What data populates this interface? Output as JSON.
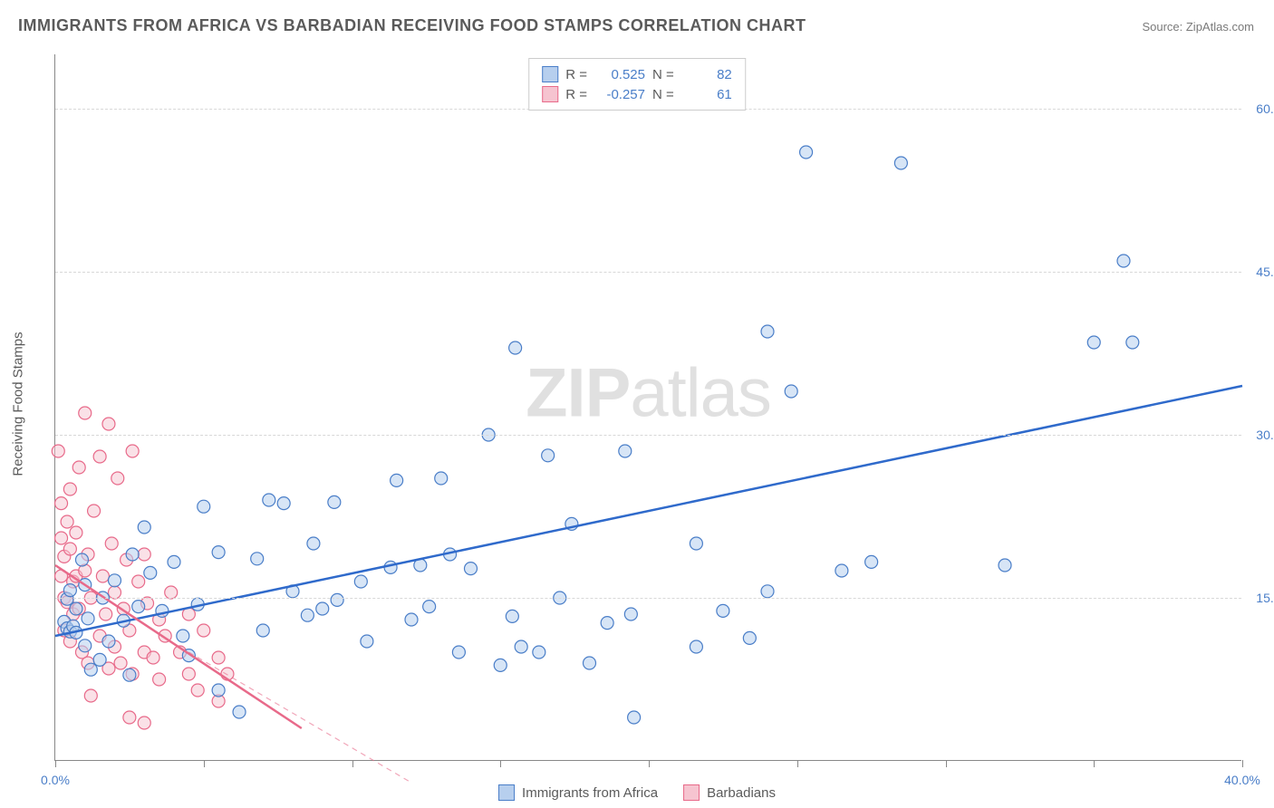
{
  "title": "IMMIGRANTS FROM AFRICA VS BARBADIAN RECEIVING FOOD STAMPS CORRELATION CHART",
  "source": "Source: ZipAtlas.com",
  "watermark_prefix": "ZIP",
  "watermark_suffix": "atlas",
  "y_axis_label": "Receiving Food Stamps",
  "chart": {
    "type": "scatter",
    "xlim": [
      0,
      40
    ],
    "ylim": [
      0,
      65
    ],
    "background_color": "#ffffff",
    "grid_color": "#d8d8d8",
    "axis_color": "#888888",
    "label_fontsize": 14,
    "tick_label_color": "#4a7ec8",
    "x_ticks": [
      0,
      5,
      10,
      15,
      20,
      25,
      30,
      35,
      40
    ],
    "x_tick_labels": {
      "0": "0.0%",
      "40": "40.0%"
    },
    "y_gridlines": [
      15,
      30,
      45,
      60
    ],
    "y_tick_labels": {
      "15": "15.0%",
      "30": "30.0%",
      "45": "45.0%",
      "60": "60.0%"
    },
    "marker_radius": 7,
    "series": [
      {
        "name": "Immigrants from Africa",
        "R": "0.525",
        "N": "82",
        "color_fill": "#b7cfee",
        "color_stroke": "#4a7ec8",
        "line_color": "#2f6acb",
        "line_width": 2.5,
        "regression": {
          "x1": 0,
          "y1": 11.5,
          "x2": 40,
          "y2": 34.5
        },
        "points": [
          [
            0.3,
            12.8
          ],
          [
            0.4,
            14.9
          ],
          [
            0.4,
            12.2
          ],
          [
            0.5,
            11.9
          ],
          [
            0.5,
            15.7
          ],
          [
            0.6,
            12.4
          ],
          [
            0.7,
            11.8
          ],
          [
            0.7,
            14.0
          ],
          [
            0.9,
            18.5
          ],
          [
            1.0,
            16.2
          ],
          [
            1.0,
            10.6
          ],
          [
            1.1,
            13.1
          ],
          [
            1.2,
            8.4
          ],
          [
            1.5,
            9.3
          ],
          [
            1.6,
            15.0
          ],
          [
            1.8,
            11.0
          ],
          [
            2.0,
            16.6
          ],
          [
            2.3,
            12.9
          ],
          [
            2.5,
            7.9
          ],
          [
            2.6,
            19.0
          ],
          [
            2.8,
            14.2
          ],
          [
            3.0,
            21.5
          ],
          [
            3.2,
            17.3
          ],
          [
            3.6,
            13.8
          ],
          [
            4.0,
            18.3
          ],
          [
            4.3,
            11.5
          ],
          [
            4.5,
            9.7
          ],
          [
            4.8,
            14.4
          ],
          [
            5.0,
            23.4
          ],
          [
            5.5,
            19.2
          ],
          [
            6.8,
            18.6
          ],
          [
            7.0,
            12.0
          ],
          [
            7.2,
            24.0
          ],
          [
            7.7,
            23.7
          ],
          [
            8.0,
            15.6
          ],
          [
            8.5,
            13.4
          ],
          [
            8.7,
            20.0
          ],
          [
            9.0,
            14.0
          ],
          [
            9.4,
            23.8
          ],
          [
            9.5,
            14.8
          ],
          [
            10.3,
            16.5
          ],
          [
            10.5,
            11.0
          ],
          [
            11.3,
            17.8
          ],
          [
            11.5,
            25.8
          ],
          [
            12.0,
            13.0
          ],
          [
            12.3,
            18.0
          ],
          [
            12.6,
            14.2
          ],
          [
            13.0,
            26.0
          ],
          [
            13.3,
            19.0
          ],
          [
            13.6,
            10.0
          ],
          [
            14.0,
            17.7
          ],
          [
            14.6,
            30.0
          ],
          [
            15.0,
            8.8
          ],
          [
            15.4,
            13.3
          ],
          [
            15.5,
            38.0
          ],
          [
            15.7,
            10.5
          ],
          [
            16.3,
            10.0
          ],
          [
            16.6,
            28.1
          ],
          [
            17.0,
            15.0
          ],
          [
            17.4,
            21.8
          ],
          [
            18.0,
            9.0
          ],
          [
            18.6,
            12.7
          ],
          [
            19.2,
            28.5
          ],
          [
            19.4,
            13.5
          ],
          [
            19.5,
            4.0
          ],
          [
            21.6,
            10.5
          ],
          [
            21.6,
            20.0
          ],
          [
            22.5,
            13.8
          ],
          [
            23.4,
            11.3
          ],
          [
            24.0,
            39.5
          ],
          [
            24.0,
            15.6
          ],
          [
            24.8,
            34.0
          ],
          [
            25.3,
            56.0
          ],
          [
            26.5,
            17.5
          ],
          [
            27.5,
            18.3
          ],
          [
            28.5,
            55.0
          ],
          [
            32.0,
            18.0
          ],
          [
            35.0,
            38.5
          ],
          [
            36.0,
            46.0
          ],
          [
            36.3,
            38.5
          ],
          [
            5.5,
            6.5
          ],
          [
            6.2,
            4.5
          ]
        ]
      },
      {
        "name": "Barbadians",
        "R": "-0.257",
        "N": "61",
        "color_fill": "#f6c4d0",
        "color_stroke": "#e86a8a",
        "line_color": "#e86a8a",
        "line_width": 2.5,
        "regression_solid": {
          "x1": 0,
          "y1": 18.0,
          "x2": 8.3,
          "y2": 3.0
        },
        "regression_dash": {
          "x1": 4.5,
          "y1": 10.0,
          "x2": 12.0,
          "y2": -2.0
        },
        "points": [
          [
            0.1,
            28.5
          ],
          [
            0.2,
            20.5
          ],
          [
            0.2,
            17.0
          ],
          [
            0.2,
            23.7
          ],
          [
            0.3,
            15.0
          ],
          [
            0.3,
            18.8
          ],
          [
            0.3,
            12.0
          ],
          [
            0.4,
            22.0
          ],
          [
            0.4,
            14.6
          ],
          [
            0.5,
            19.5
          ],
          [
            0.5,
            11.0
          ],
          [
            0.5,
            25.0
          ],
          [
            0.6,
            16.5
          ],
          [
            0.6,
            13.5
          ],
          [
            0.7,
            17.0
          ],
          [
            0.7,
            21.0
          ],
          [
            0.8,
            27.0
          ],
          [
            0.8,
            14.0
          ],
          [
            0.9,
            10.0
          ],
          [
            1.0,
            32.0
          ],
          [
            1.0,
            17.5
          ],
          [
            1.1,
            9.0
          ],
          [
            1.1,
            19.0
          ],
          [
            1.2,
            15.0
          ],
          [
            1.2,
            6.0
          ],
          [
            1.3,
            23.0
          ],
          [
            1.5,
            28.0
          ],
          [
            1.5,
            11.5
          ],
          [
            1.6,
            17.0
          ],
          [
            1.7,
            13.5
          ],
          [
            1.8,
            31.0
          ],
          [
            1.8,
            8.5
          ],
          [
            1.9,
            20.0
          ],
          [
            2.0,
            10.5
          ],
          [
            2.0,
            15.5
          ],
          [
            2.1,
            26.0
          ],
          [
            2.2,
            9.0
          ],
          [
            2.3,
            14.0
          ],
          [
            2.4,
            18.5
          ],
          [
            2.5,
            12.0
          ],
          [
            2.6,
            28.5
          ],
          [
            2.6,
            8.0
          ],
          [
            2.8,
            16.5
          ],
          [
            3.0,
            10.0
          ],
          [
            3.0,
            19.0
          ],
          [
            3.1,
            14.5
          ],
          [
            3.3,
            9.5
          ],
          [
            3.5,
            13.0
          ],
          [
            3.5,
            7.5
          ],
          [
            3.7,
            11.5
          ],
          [
            3.9,
            15.5
          ],
          [
            4.2,
            10.0
          ],
          [
            4.5,
            13.5
          ],
          [
            4.5,
            8.0
          ],
          [
            4.8,
            6.5
          ],
          [
            5.0,
            12.0
          ],
          [
            5.5,
            5.5
          ],
          [
            5.5,
            9.5
          ],
          [
            5.8,
            8.0
          ],
          [
            2.5,
            4.0
          ],
          [
            3.0,
            3.5
          ]
        ]
      }
    ],
    "stats_legend_labels": {
      "R": "R =",
      "N": "N ="
    },
    "series_legend_label_africa": "Immigrants from Africa",
    "series_legend_label_barbadians": "Barbadians"
  }
}
